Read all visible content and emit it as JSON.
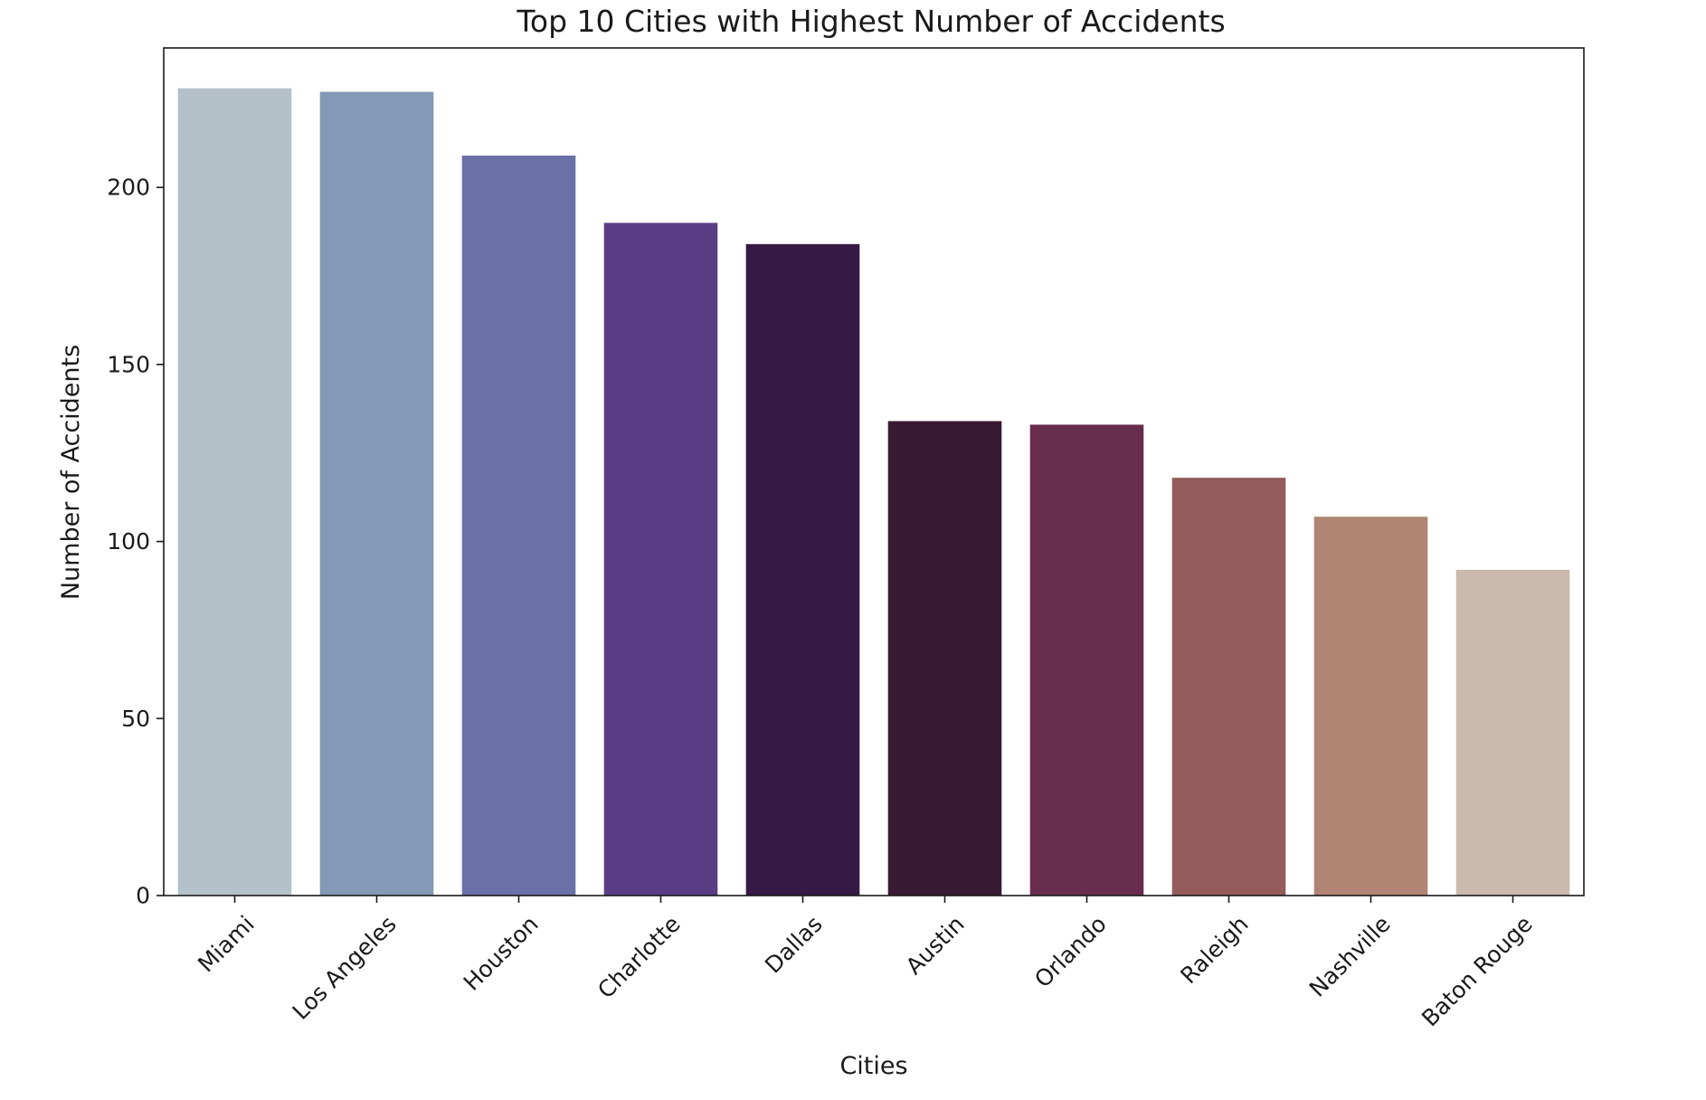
{
  "chart_data": {
    "type": "bar",
    "title": "Top 10 Cities with Highest Number of Accidents",
    "xlabel": "Cities",
    "ylabel": "Number of Accidents",
    "categories": [
      "Miami",
      "Los Angeles",
      "Houston",
      "Charlotte",
      "Dallas",
      "Austin",
      "Orlando",
      "Raleigh",
      "Nashville",
      "Baton Rouge"
    ],
    "values": [
      228,
      227,
      209,
      190,
      184,
      134,
      133,
      118,
      107,
      92
    ],
    "colors": [
      "#b4c1c9",
      "#8399b5",
      "#6b70a6",
      "#5b3d86",
      "#361a45",
      "#381a32",
      "#682d4c",
      "#935b5a",
      "#b08573",
      "#cab9ac"
    ],
    "yticks": [
      0,
      50,
      100,
      150,
      200
    ],
    "ylim": [
      0,
      239.4
    ],
    "grid": false,
    "legend": false
  }
}
